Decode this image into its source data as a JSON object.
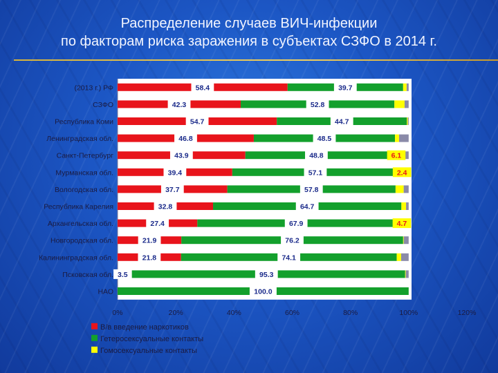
{
  "title": {
    "line1": "Распределение случаев ВИЧ-инфекции",
    "line2": "по факторам риска заражения в субъектах СЗФО в 2014 г."
  },
  "colors": {
    "series": [
      "#e8141b",
      "#13a02c",
      "#ffff00",
      "#8a8aa8"
    ],
    "plot_bg": "#ffffff",
    "title_rule": "#e0c050"
  },
  "chart_data": {
    "type": "bar",
    "orientation": "horizontal",
    "stacked": "percent",
    "categories": [
      "(2013 г.) РФ",
      "СЗФО",
      "Республика Коми",
      "Ленинградская обл.",
      "Санкт-Петербург",
      "Мурманская обл.",
      "Вологодская обл.",
      "Республика Карелия",
      "Архангельская обл.",
      "Новгородская обл.",
      "Калининградская обл.",
      "Псковская обл.",
      "НАО"
    ],
    "series": [
      {
        "name": "В/в введение наркотиков",
        "values": [
          58.4,
          42.3,
          54.7,
          46.8,
          43.9,
          39.4,
          37.7,
          32.8,
          27.4,
          21.9,
          21.8,
          3.5,
          0
        ],
        "labels": [
          "58.4",
          "42.3",
          "54.7",
          "46.8",
          "43.9",
          "39.4",
          "37.7",
          "32.8",
          "27.4",
          "21.9",
          "21.8",
          "3.5",
          ""
        ]
      },
      {
        "name": "Гетеросексуальные контакты",
        "values": [
          39.7,
          52.8,
          44.7,
          48.5,
          48.8,
          57.1,
          57.8,
          64.7,
          67.9,
          76.2,
          74.1,
          95.3,
          100
        ],
        "labels": [
          "39.7",
          "52.8",
          "44.7",
          "48.5",
          "48.8",
          "57.1",
          "57.8",
          "64.7",
          "67.9",
          "76.2",
          "74.1",
          "95.3",
          "100.0"
        ]
      },
      {
        "name": "Гомосексуальные контакты",
        "values": [
          1.2,
          3.5,
          0.3,
          1.4,
          6.1,
          2.4,
          2.8,
          1.6,
          4.7,
          0.2,
          1.5,
          0.2,
          0
        ],
        "labels": [
          "",
          "",
          "",
          "",
          "6.1",
          "2.4",
          "",
          "",
          "4.7",
          "",
          "",
          "",
          ""
        ]
      },
      {
        "name": "",
        "values": [
          0.7,
          1.4,
          0.3,
          3.3,
          1.2,
          1.1,
          1.7,
          0.9,
          0,
          1.7,
          2.6,
          1.0,
          0
        ],
        "labels": [
          "",
          "",
          "",
          "",
          "",
          "",
          "",
          "",
          "",
          "",
          "",
          "",
          ""
        ]
      }
    ],
    "xlim": [
      0,
      120
    ],
    "xticks": [
      "0%",
      "20%",
      "40%",
      "60%",
      "80%",
      "100%",
      "120%"
    ],
    "legend": [
      "В/в введение наркотиков",
      "Гетеросексуальные контакты",
      "Гомосексуальные контакты"
    ],
    "legend_position": "bottom-left",
    "grid": false
  }
}
